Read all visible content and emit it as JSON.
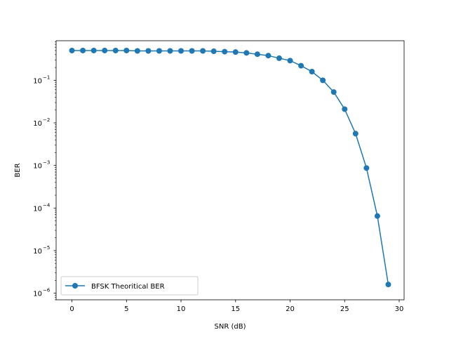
{
  "chart_data": {
    "type": "line",
    "xlabel": "SNR (dB)",
    "ylabel": "BER",
    "xlim": [
      -1.45,
      30.45
    ],
    "ylim": [
      7e-07,
      0.85
    ],
    "yscale": "log",
    "grid": false,
    "legend_position": "lower-left",
    "x_ticks": [
      0,
      5,
      10,
      15,
      20,
      25,
      30
    ],
    "y_tick_exponents": [
      -6,
      -5,
      -4,
      -3,
      -2,
      -1
    ],
    "series": [
      {
        "name": "BFSK Theoritical BER",
        "color": "#1f77b4",
        "marker": "circle",
        "x": [
          0,
          1,
          2,
          3,
          4,
          5,
          6,
          7,
          8,
          9,
          10,
          11,
          12,
          13,
          14,
          15,
          16,
          17,
          18,
          19,
          20,
          21,
          22,
          23,
          24,
          25,
          26,
          27,
          28,
          29
        ],
        "y": [
          0.5,
          0.5,
          0.5,
          0.5,
          0.5,
          0.5,
          0.49,
          0.49,
          0.49,
          0.49,
          0.49,
          0.49,
          0.49,
          0.48,
          0.47,
          0.46,
          0.44,
          0.41,
          0.38,
          0.33,
          0.29,
          0.22,
          0.16,
          0.1,
          0.053,
          0.021,
          0.0056,
          0.00087,
          6.5e-05,
          1.6e-06
        ]
      }
    ]
  }
}
